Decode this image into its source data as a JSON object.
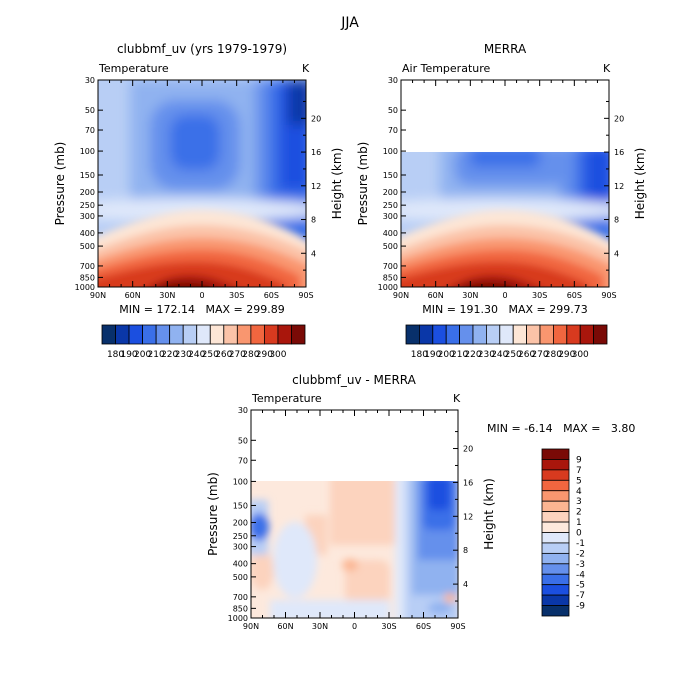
{
  "figure": {
    "title": "JJA"
  },
  "axes_common": {
    "pressure_ticks": [
      "30",
      "50",
      "70",
      "100",
      "150",
      "200",
      "250",
      "300",
      "400",
      "500",
      "700",
      "850",
      "1000"
    ],
    "pressure_values": [
      30,
      50,
      70,
      100,
      150,
      200,
      250,
      300,
      400,
      500,
      700,
      850,
      1000
    ],
    "lat_tick_labels": [
      "90N",
      "60N",
      "30N",
      "0",
      "30S",
      "60S",
      "90S"
    ],
    "lat_values": [
      90,
      60,
      30,
      0,
      -30,
      -60,
      -90
    ],
    "height_tick_labels": [
      "4",
      "8",
      "12",
      "16",
      "20"
    ],
    "height_values_km": [
      4,
      8,
      12,
      16,
      20
    ],
    "ylabel": "Pressure (mb)",
    "y2label": "Height (km)"
  },
  "chart_data": [
    {
      "type": "heatmap",
      "title": "clubbmf_uv (yrs 1979-1979)",
      "variable": "Temperature",
      "units": "K",
      "min_label": "MIN = 172.14",
      "max_label": "MAX = 299.89",
      "min": 172.14,
      "max": 299.89,
      "data_top_pressure": 30,
      "xlim": [
        90,
        -90
      ],
      "ylim": [
        1000,
        30
      ],
      "colorbar_labels": [
        "180",
        "190",
        "200",
        "210",
        "220",
        "230",
        "240",
        "250",
        "260",
        "270",
        "280",
        "290",
        "300"
      ]
    },
    {
      "type": "heatmap",
      "title": "MERRA",
      "variable": "Air Temperature",
      "units": "K",
      "min_label": "MIN = 191.30",
      "max_label": "MAX = 299.73",
      "min": 191.3,
      "max": 299.73,
      "data_top_pressure": 100,
      "xlim": [
        90,
        -90
      ],
      "ylim": [
        1000,
        30
      ],
      "colorbar_labels": [
        "180",
        "190",
        "200",
        "210",
        "220",
        "230",
        "240",
        "250",
        "260",
        "270",
        "280",
        "290",
        "300"
      ]
    },
    {
      "type": "heatmap",
      "title": "clubbmf_uv - MERRA",
      "variable": "Temperature",
      "units": "K",
      "min_label": "MIN =",
      "min_value_label": "-6.14",
      "max_label": "MAX =",
      "max_value_label": "3.80",
      "min": -6.14,
      "max": 3.8,
      "data_top_pressure": 100,
      "xlim": [
        90,
        -90
      ],
      "ylim": [
        1000,
        30
      ],
      "colorbar_labels": [
        "9",
        "7",
        "5",
        "4",
        "3",
        "2",
        "1",
        "0",
        "-1",
        "-2",
        "-3",
        "-4",
        "-5",
        "-7",
        "-9"
      ]
    }
  ],
  "palettes": {
    "temperature": [
      "#08306b",
      "#0a37a8",
      "#1b4fe0",
      "#3a6fe8",
      "#6590ec",
      "#90b2f0",
      "#b8cef5",
      "#dfe8fa",
      "#fde6d6",
      "#fbc3a8",
      "#f9966f",
      "#f1663f",
      "#d83a1f",
      "#a9160c",
      "#7a0a06"
    ],
    "difference": [
      "#7a0a06",
      "#a9160c",
      "#d83a1f",
      "#f1663f",
      "#f9966f",
      "#fbb592",
      "#fcd3be",
      "#fde9dd",
      "#dfe8fa",
      "#b8cef5",
      "#90b2f0",
      "#6590ec",
      "#3a6fe8",
      "#1b4fe0",
      "#0a37a8",
      "#08306b"
    ]
  }
}
